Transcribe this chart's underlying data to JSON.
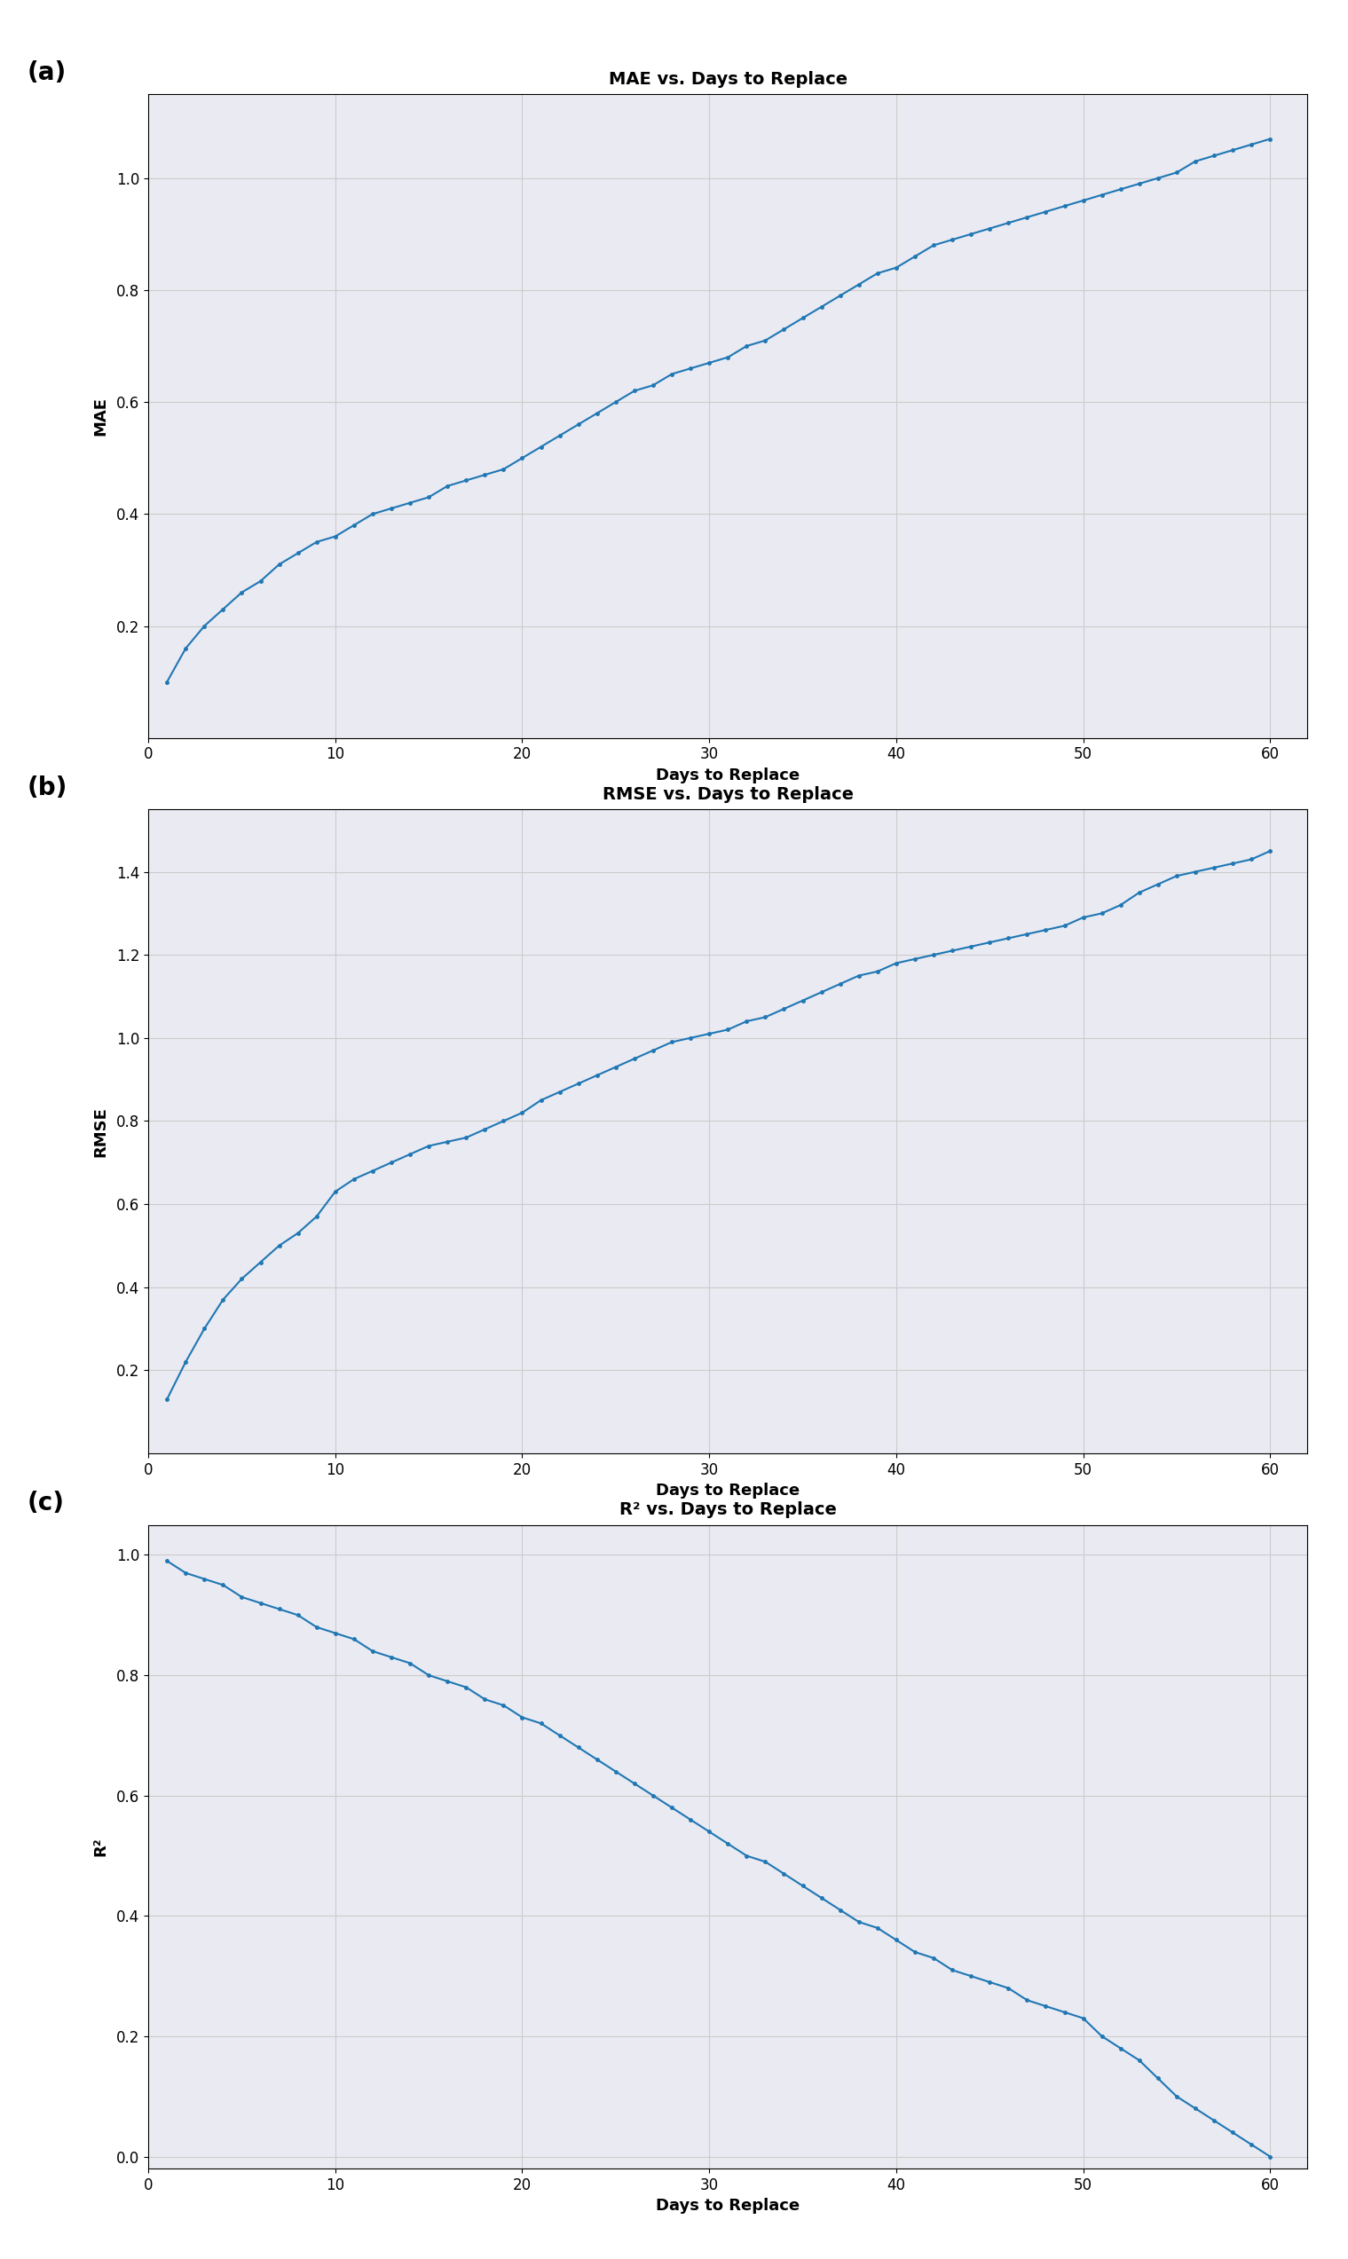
{
  "x": [
    1,
    2,
    3,
    4,
    5,
    6,
    7,
    8,
    9,
    10,
    11,
    12,
    13,
    14,
    15,
    16,
    17,
    18,
    19,
    20,
    21,
    22,
    23,
    24,
    25,
    26,
    27,
    28,
    29,
    30,
    31,
    32,
    33,
    34,
    35,
    36,
    37,
    38,
    39,
    40,
    41,
    42,
    43,
    44,
    45,
    46,
    47,
    48,
    49,
    50,
    51,
    52,
    53,
    54,
    55,
    56,
    57,
    58,
    59,
    60
  ],
  "mae": [
    0.1,
    0.16,
    0.2,
    0.23,
    0.26,
    0.28,
    0.31,
    0.33,
    0.35,
    0.36,
    0.38,
    0.4,
    0.41,
    0.42,
    0.43,
    0.45,
    0.46,
    0.47,
    0.48,
    0.5,
    0.52,
    0.54,
    0.56,
    0.58,
    0.6,
    0.62,
    0.63,
    0.65,
    0.66,
    0.67,
    0.68,
    0.7,
    0.71,
    0.73,
    0.75,
    0.77,
    0.79,
    0.81,
    0.83,
    0.84,
    0.86,
    0.88,
    0.89,
    0.9,
    0.91,
    0.92,
    0.93,
    0.94,
    0.95,
    0.96,
    0.97,
    0.98,
    0.99,
    1.0,
    1.01,
    1.03,
    1.04,
    1.05,
    1.06,
    1.07
  ],
  "rmse": [
    0.13,
    0.22,
    0.3,
    0.37,
    0.42,
    0.46,
    0.5,
    0.53,
    0.57,
    0.63,
    0.66,
    0.68,
    0.7,
    0.72,
    0.74,
    0.75,
    0.76,
    0.78,
    0.8,
    0.82,
    0.85,
    0.87,
    0.89,
    0.91,
    0.93,
    0.95,
    0.97,
    0.99,
    1.0,
    1.01,
    1.02,
    1.04,
    1.05,
    1.07,
    1.09,
    1.11,
    1.13,
    1.15,
    1.16,
    1.18,
    1.19,
    1.2,
    1.21,
    1.22,
    1.23,
    1.24,
    1.25,
    1.26,
    1.27,
    1.29,
    1.3,
    1.32,
    1.35,
    1.37,
    1.39,
    1.4,
    1.41,
    1.42,
    1.43,
    1.45
  ],
  "r2": [
    0.99,
    0.97,
    0.96,
    0.95,
    0.93,
    0.92,
    0.91,
    0.9,
    0.88,
    0.87,
    0.86,
    0.84,
    0.83,
    0.82,
    0.8,
    0.79,
    0.78,
    0.76,
    0.75,
    0.73,
    0.72,
    0.7,
    0.68,
    0.66,
    0.64,
    0.62,
    0.6,
    0.58,
    0.56,
    0.54,
    0.52,
    0.5,
    0.49,
    0.47,
    0.45,
    0.43,
    0.41,
    0.39,
    0.38,
    0.36,
    0.34,
    0.33,
    0.31,
    0.3,
    0.29,
    0.28,
    0.26,
    0.25,
    0.24,
    0.23,
    0.2,
    0.18,
    0.16,
    0.13,
    0.1,
    0.08,
    0.06,
    0.04,
    0.02,
    0.0
  ],
  "line_color": "#1f77b4",
  "marker": ".",
  "markersize": 5,
  "linewidth": 1.5,
  "title_a": "MAE vs. Days to Replace",
  "title_b": "RMSE vs. Days to Replace",
  "title_c": "R² vs. Days to Replace",
  "xlabel": "Days to Replace",
  "ylabel_a": "MAE",
  "ylabel_b": "RMSE",
  "ylabel_c": "R²",
  "label_a": "(a)",
  "label_b": "(b)",
  "label_c": "(c)",
  "xlim": [
    0,
    62
  ],
  "ylim_a": [
    0.0,
    1.15
  ],
  "ylim_b": [
    0.0,
    1.55
  ],
  "ylim_c": [
    -0.02,
    1.05
  ],
  "xticks": [
    0,
    10,
    20,
    30,
    40,
    50,
    60
  ],
  "yticks_a": [
    0.2,
    0.4,
    0.6,
    0.8,
    1.0
  ],
  "yticks_b": [
    0.2,
    0.4,
    0.6,
    0.8,
    1.0,
    1.2,
    1.4
  ],
  "yticks_c": [
    0.0,
    0.2,
    0.4,
    0.6,
    0.8,
    1.0
  ],
  "grid_color": "#cccccc",
  "bg_color": "#eaeaf2",
  "title_fontsize": 14,
  "label_fontsize": 13,
  "tick_fontsize": 12,
  "panel_label_fontsize": 20
}
